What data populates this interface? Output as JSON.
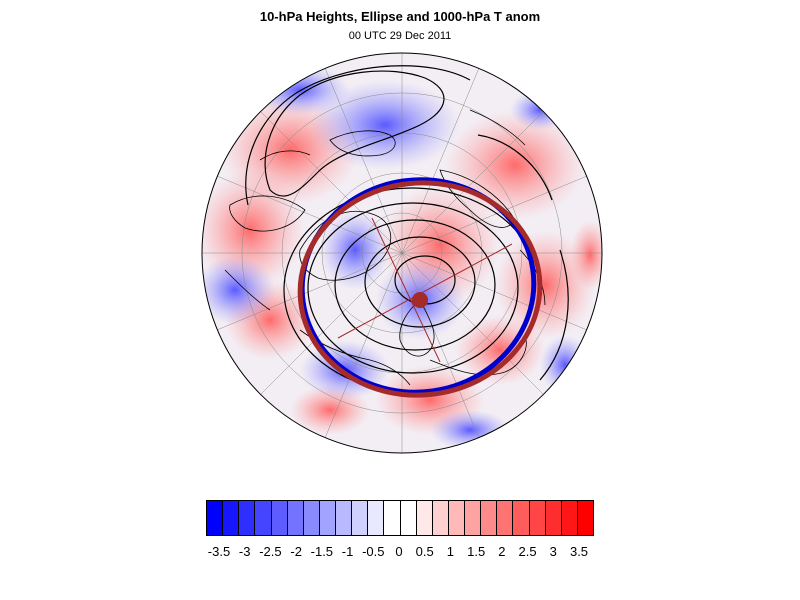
{
  "title": "10-hPa Heights, Ellipse and 1000-hPa T anom",
  "subtitle": "00 UTC 29 Dec 2011",
  "colorbar": {
    "labels": [
      "-3.5",
      "-3",
      "-2.5",
      "-2",
      "-1.5",
      "-1",
      "-0.5",
      "0",
      "0.5",
      "1",
      "1.5",
      "2",
      "2.5",
      "3",
      "3.5"
    ],
    "colors": [
      "#0000ff",
      "#1717ff",
      "#2e2eff",
      "#4545ff",
      "#5c5cff",
      "#7373ff",
      "#8a8aff",
      "#a2a2ff",
      "#b9b9ff",
      "#d0d0ff",
      "#e8e8ff",
      "#ffffff",
      "#ffffff",
      "#ffe8e8",
      "#ffd0d0",
      "#ffb9b9",
      "#ffa2a2",
      "#ff8a8a",
      "#ff7373",
      "#ff5c5c",
      "#ff4545",
      "#ff2e2e",
      "#ff1717",
      "#ff0000"
    ]
  },
  "colors": {
    "ellipse_blue": "#0000cc",
    "ellipse_red": "#a52a2a",
    "contour": "#000000"
  }
}
